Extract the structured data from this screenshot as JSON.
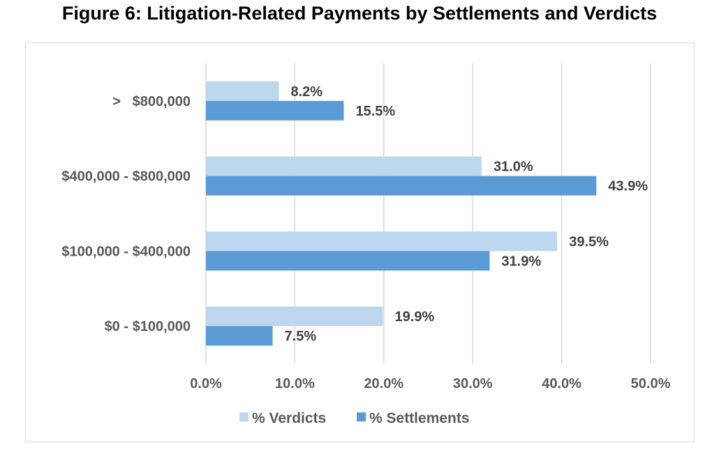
{
  "figure_title": "Figure 6: Litigation-Related Payments by Settlements and Verdicts",
  "colors": {
    "verdicts": "#bdd7ee",
    "settlements": "#5b9bd5",
    "grid": "#d9d9d9"
  },
  "chart_data": {
    "type": "bar",
    "orientation": "horizontal",
    "title": "Figure 6: Litigation-Related Payments by Settlements and Verdicts",
    "categories": [
      ">   $800,000",
      "$400,000 - $800,000",
      "$100,000 - $400,000",
      "$0 - $100,000"
    ],
    "series": [
      {
        "name": "% Verdicts",
        "values": [
          8.2,
          31.0,
          39.5,
          19.9
        ],
        "labels": [
          "8.2%",
          "31.0%",
          "39.5%",
          "19.9%"
        ]
      },
      {
        "name": "% Settlements",
        "values": [
          15.5,
          43.9,
          31.9,
          7.5
        ],
        "labels": [
          "15.5%",
          "43.9%",
          "31.9%",
          "7.5%"
        ]
      }
    ],
    "xlim": [
      0,
      50
    ],
    "xticks": [
      0,
      10,
      20,
      30,
      40,
      50
    ],
    "xtick_labels": [
      "0.0%",
      "10.0%",
      "20.0%",
      "30.0%",
      "40.0%",
      "50.0%"
    ],
    "grid": "vertical",
    "legend": "bottom"
  }
}
